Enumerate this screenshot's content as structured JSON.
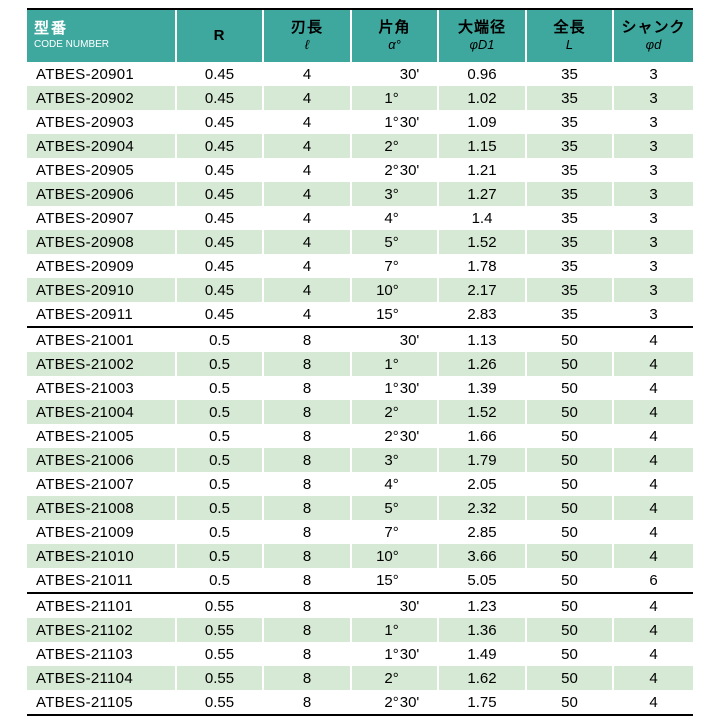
{
  "colors": {
    "header_bg": "#3fa89e",
    "row_alt_bg": "#d6e9d4",
    "header_text_primary": "#ffffff",
    "header_text_secondary": "#000000",
    "group_border": "#000000",
    "grid_line": "#ffffff"
  },
  "table": {
    "headers": [
      {
        "line1": "型番",
        "line2": "CODE NUMBER"
      },
      {
        "line1": "R",
        "line2": ""
      },
      {
        "line1": "刃長",
        "line2": "ℓ"
      },
      {
        "line1": "片角",
        "line2": "α°"
      },
      {
        "line1": "大端径",
        "line2": "φD1"
      },
      {
        "line1": "全長",
        "line2": "L"
      },
      {
        "line1": "シャンク",
        "line2": "φd"
      }
    ],
    "groups": [
      {
        "rows": [
          {
            "code": "ATBES-20901",
            "r": "0.45",
            "flute_length": "4",
            "angle_deg": "",
            "angle_min": "30'",
            "d1": "0.96",
            "overall_length": "35",
            "shank": "3"
          },
          {
            "code": "ATBES-20902",
            "r": "0.45",
            "flute_length": "4",
            "angle_deg": "1°",
            "angle_min": "",
            "d1": "1.02",
            "overall_length": "35",
            "shank": "3"
          },
          {
            "code": "ATBES-20903",
            "r": "0.45",
            "flute_length": "4",
            "angle_deg": "1°",
            "angle_min": "30'",
            "d1": "1.09",
            "overall_length": "35",
            "shank": "3"
          },
          {
            "code": "ATBES-20904",
            "r": "0.45",
            "flute_length": "4",
            "angle_deg": "2°",
            "angle_min": "",
            "d1": "1.15",
            "overall_length": "35",
            "shank": "3"
          },
          {
            "code": "ATBES-20905",
            "r": "0.45",
            "flute_length": "4",
            "angle_deg": "2°",
            "angle_min": "30'",
            "d1": "1.21",
            "overall_length": "35",
            "shank": "3"
          },
          {
            "code": "ATBES-20906",
            "r": "0.45",
            "flute_length": "4",
            "angle_deg": "3°",
            "angle_min": "",
            "d1": "1.27",
            "overall_length": "35",
            "shank": "3"
          },
          {
            "code": "ATBES-20907",
            "r": "0.45",
            "flute_length": "4",
            "angle_deg": "4°",
            "angle_min": "",
            "d1": "1.4",
            "overall_length": "35",
            "shank": "3"
          },
          {
            "code": "ATBES-20908",
            "r": "0.45",
            "flute_length": "4",
            "angle_deg": "5°",
            "angle_min": "",
            "d1": "1.52",
            "overall_length": "35",
            "shank": "3"
          },
          {
            "code": "ATBES-20909",
            "r": "0.45",
            "flute_length": "4",
            "angle_deg": "7°",
            "angle_min": "",
            "d1": "1.78",
            "overall_length": "35",
            "shank": "3"
          },
          {
            "code": "ATBES-20910",
            "r": "0.45",
            "flute_length": "4",
            "angle_deg": "10°",
            "angle_min": "",
            "d1": "2.17",
            "overall_length": "35",
            "shank": "3"
          },
          {
            "code": "ATBES-20911",
            "r": "0.45",
            "flute_length": "4",
            "angle_deg": "15°",
            "angle_min": "",
            "d1": "2.83",
            "overall_length": "35",
            "shank": "3"
          }
        ]
      },
      {
        "rows": [
          {
            "code": "ATBES-21001",
            "r": "0.5",
            "flute_length": "8",
            "angle_deg": "",
            "angle_min": "30'",
            "d1": "1.13",
            "overall_length": "50",
            "shank": "4"
          },
          {
            "code": "ATBES-21002",
            "r": "0.5",
            "flute_length": "8",
            "angle_deg": "1°",
            "angle_min": "",
            "d1": "1.26",
            "overall_length": "50",
            "shank": "4"
          },
          {
            "code": "ATBES-21003",
            "r": "0.5",
            "flute_length": "8",
            "angle_deg": "1°",
            "angle_min": "30'",
            "d1": "1.39",
            "overall_length": "50",
            "shank": "4"
          },
          {
            "code": "ATBES-21004",
            "r": "0.5",
            "flute_length": "8",
            "angle_deg": "2°",
            "angle_min": "",
            "d1": "1.52",
            "overall_length": "50",
            "shank": "4"
          },
          {
            "code": "ATBES-21005",
            "r": "0.5",
            "flute_length": "8",
            "angle_deg": "2°",
            "angle_min": "30'",
            "d1": "1.66",
            "overall_length": "50",
            "shank": "4"
          },
          {
            "code": "ATBES-21006",
            "r": "0.5",
            "flute_length": "8",
            "angle_deg": "3°",
            "angle_min": "",
            "d1": "1.79",
            "overall_length": "50",
            "shank": "4"
          },
          {
            "code": "ATBES-21007",
            "r": "0.5",
            "flute_length": "8",
            "angle_deg": "4°",
            "angle_min": "",
            "d1": "2.05",
            "overall_length": "50",
            "shank": "4"
          },
          {
            "code": "ATBES-21008",
            "r": "0.5",
            "flute_length": "8",
            "angle_deg": "5°",
            "angle_min": "",
            "d1": "2.32",
            "overall_length": "50",
            "shank": "4"
          },
          {
            "code": "ATBES-21009",
            "r": "0.5",
            "flute_length": "8",
            "angle_deg": "7°",
            "angle_min": "",
            "d1": "2.85",
            "overall_length": "50",
            "shank": "4"
          },
          {
            "code": "ATBES-21010",
            "r": "0.5",
            "flute_length": "8",
            "angle_deg": "10°",
            "angle_min": "",
            "d1": "3.66",
            "overall_length": "50",
            "shank": "4"
          },
          {
            "code": "ATBES-21011",
            "r": "0.5",
            "flute_length": "8",
            "angle_deg": "15°",
            "angle_min": "",
            "d1": "5.05",
            "overall_length": "50",
            "shank": "6"
          }
        ]
      },
      {
        "rows": [
          {
            "code": "ATBES-21101",
            "r": "0.55",
            "flute_length": "8",
            "angle_deg": "",
            "angle_min": "30'",
            "d1": "1.23",
            "overall_length": "50",
            "shank": "4"
          },
          {
            "code": "ATBES-21102",
            "r": "0.55",
            "flute_length": "8",
            "angle_deg": "1°",
            "angle_min": "",
            "d1": "1.36",
            "overall_length": "50",
            "shank": "4"
          },
          {
            "code": "ATBES-21103",
            "r": "0.55",
            "flute_length": "8",
            "angle_deg": "1°",
            "angle_min": "30'",
            "d1": "1.49",
            "overall_length": "50",
            "shank": "4"
          },
          {
            "code": "ATBES-21104",
            "r": "0.55",
            "flute_length": "8",
            "angle_deg": "2°",
            "angle_min": "",
            "d1": "1.62",
            "overall_length": "50",
            "shank": "4"
          },
          {
            "code": "ATBES-21105",
            "r": "0.55",
            "flute_length": "8",
            "angle_deg": "2°",
            "angle_min": "30'",
            "d1": "1.75",
            "overall_length": "50",
            "shank": "4"
          }
        ]
      }
    ]
  }
}
